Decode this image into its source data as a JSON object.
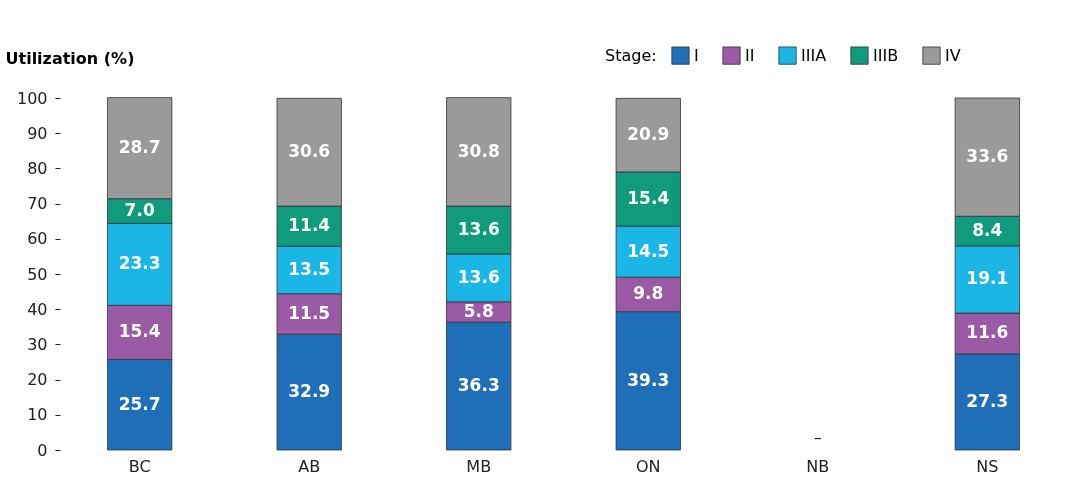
{
  "chart_data": {
    "type": "bar",
    "ylabel": "Utilization (%)",
    "legend_title": "Stage:",
    "categories": [
      "BC",
      "AB",
      "MB",
      "ON",
      "NB",
      "NS"
    ],
    "series": [
      {
        "name": "I",
        "color": "#1e6fb8",
        "values": [
          25.7,
          32.9,
          36.3,
          39.3,
          null,
          27.3
        ],
        "value_labels": [
          "25.7",
          "32.9",
          "36.3",
          "39.3",
          null,
          "27.3"
        ]
      },
      {
        "name": "II",
        "color": "#9a5aa6",
        "values": [
          15.4,
          11.5,
          5.8,
          9.8,
          null,
          11.6
        ],
        "value_labels": [
          "15.4",
          "11.5",
          "5.8",
          "9.8",
          null,
          "11.6"
        ]
      },
      {
        "name": "IIIA",
        "color": "#1ab6e6",
        "values": [
          23.3,
          13.5,
          13.6,
          14.5,
          null,
          19.1
        ],
        "value_labels": [
          "23.3",
          "13.5",
          "13.6",
          "14.5",
          null,
          "19.1"
        ]
      },
      {
        "name": "IIIB",
        "color": "#0f9b7c",
        "values": [
          7.0,
          11.4,
          13.6,
          15.4,
          null,
          8.4
        ],
        "value_labels": [
          "7.0",
          "11.4",
          "13.6",
          "15.4",
          null,
          "8.4"
        ]
      },
      {
        "name": "IV",
        "color": "#9a9a9a",
        "values": [
          28.7,
          30.6,
          30.8,
          20.9,
          null,
          33.6
        ],
        "value_labels": [
          "28.7",
          "30.6",
          "30.8",
          "20.9",
          null,
          "33.6"
        ]
      }
    ],
    "stacked": true,
    "ylim": [
      0,
      100
    ],
    "yticks": [
      0,
      10,
      20,
      30,
      40,
      50,
      60,
      70,
      80,
      90,
      100
    ],
    "grid": false,
    "legend": "top right",
    "annotations": [
      "–"
    ]
  }
}
